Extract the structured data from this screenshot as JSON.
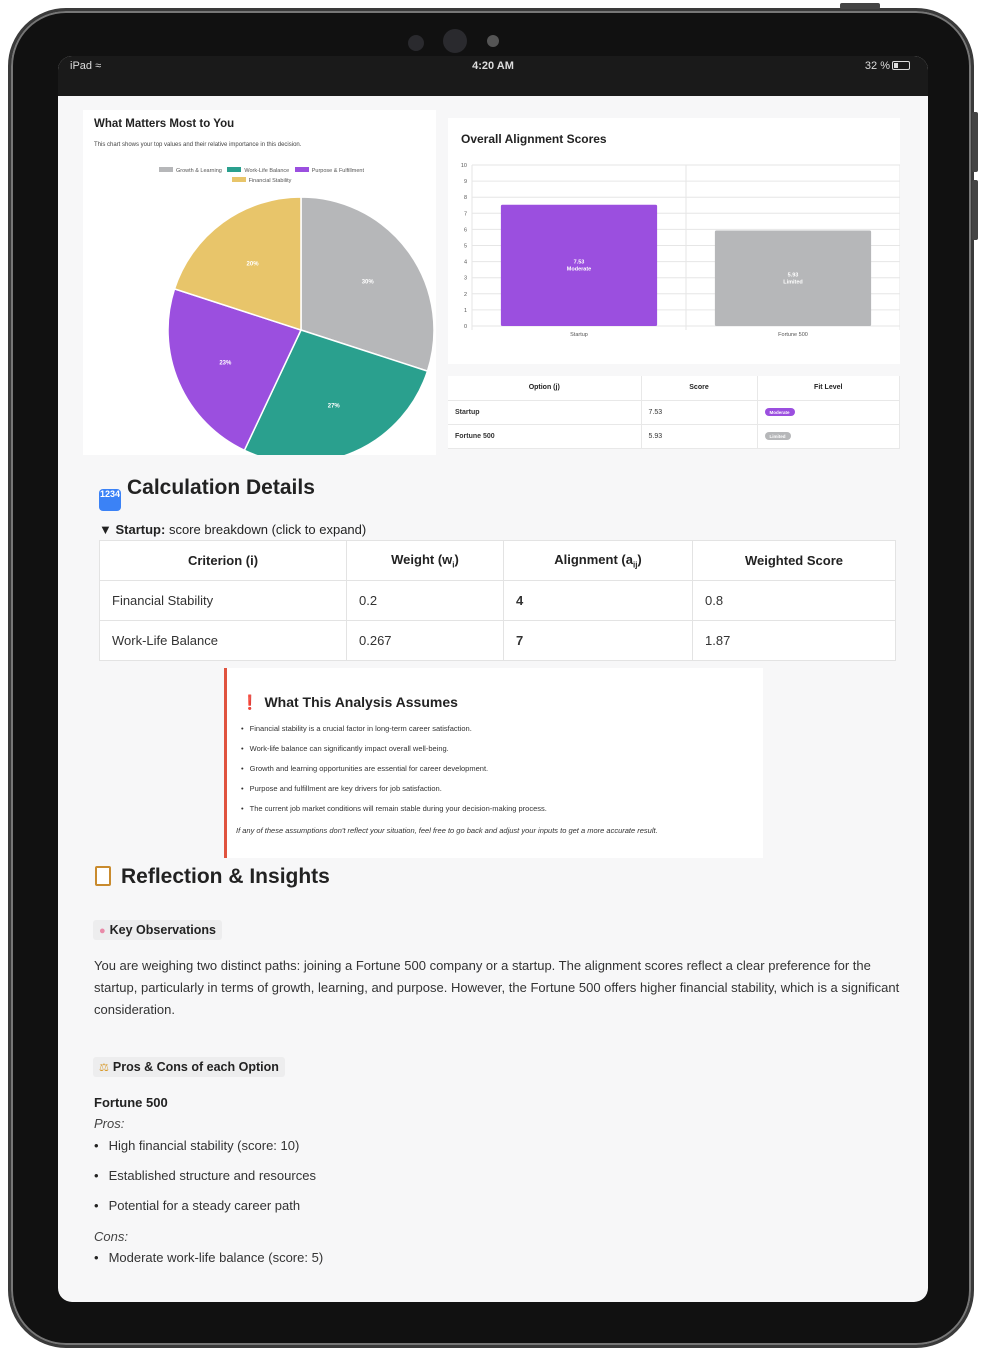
{
  "status": {
    "device": "iPad",
    "time": "4:20 AM",
    "battery": "32 %"
  },
  "pie_chart": {
    "title": "What Matters Most to You",
    "subtitle": "This chart shows your top values and their relative importance in this decision.",
    "legend": [
      {
        "label": "Growth & Learning",
        "color": "#b6b7b9"
      },
      {
        "label": "Work-Life Balance",
        "color": "#2aa08e"
      },
      {
        "label": "Purpose & Fulfillment",
        "color": "#9b4fdf"
      },
      {
        "label": "Financial Stability",
        "color": "#e8c56a"
      }
    ]
  },
  "bar_chart": {
    "title": "Overall Alignment Scores"
  },
  "chart_data": [
    {
      "type": "pie",
      "title": "What Matters Most to You",
      "categories": [
        "Growth & Learning",
        "Work-Life Balance",
        "Purpose & Fulfillment",
        "Financial Stability"
      ],
      "values": [
        30,
        27,
        23,
        20
      ],
      "labels": [
        "30%",
        "27%",
        "23%",
        "20%"
      ],
      "colors": [
        "#b6b7b9",
        "#2aa08e",
        "#9b4fdf",
        "#e8c56a"
      ],
      "legend_position": "top"
    },
    {
      "type": "bar",
      "title": "Overall Alignment Scores",
      "categories": [
        "Startup",
        "Fortune 500"
      ],
      "values": [
        7.53,
        5.93
      ],
      "data_labels": [
        [
          "7.53",
          "Moderate"
        ],
        [
          "5.93",
          "Limited"
        ]
      ],
      "colors": [
        "#9b4fdf",
        "#b6b7b9"
      ],
      "ylim": [
        0,
        10
      ],
      "yticks": [
        "0",
        "1",
        "2",
        "3",
        "4",
        "5",
        "6",
        "7",
        "8",
        "9",
        "10"
      ],
      "grid": true
    }
  ],
  "score_table": {
    "headers": [
      "Option (j)",
      "Score",
      "Fit Level"
    ],
    "rows": [
      {
        "option": "Startup",
        "score": "7.53",
        "fit": "Moderate",
        "fit_color": "#9b4fdf"
      },
      {
        "option": "Fortune 500",
        "score": "5.93",
        "fit": "Limited",
        "fit_color": "#b6b7b9"
      }
    ]
  },
  "calc": {
    "icon": "1234",
    "title": "Calculation Details",
    "summary_name": "Startup:",
    "summary_rest": " score breakdown (click to expand)",
    "headers": {
      "criterion": "Criterion (i)",
      "weight": "Weight (w",
      "weight_sub": "i",
      "alignment": "Alignment (a",
      "alignment_sub": "ij",
      "weighted": "Weighted Score"
    },
    "rows": [
      {
        "criterion": "Financial Stability",
        "weight": "0.2",
        "alignment": "4",
        "weighted": "0.8"
      },
      {
        "criterion": "Work-Life Balance",
        "weight": "0.267",
        "alignment": "7",
        "weighted": "1.87"
      }
    ]
  },
  "assumptions": {
    "icon": "❗",
    "title": "What This Analysis Assumes",
    "items": [
      "Financial stability is a crucial factor in long-term career satisfaction.",
      "Work-life balance can significantly impact overall well-being.",
      "Growth and learning opportunities are essential for career development.",
      "Purpose and fulfillment are key drivers for job satisfaction.",
      "The current job market conditions will remain stable during your decision-making process."
    ],
    "note": "If any of these assumptions don't reflect your situation, feel free to go back and adjust your inputs to get a more accurate result."
  },
  "reflection": {
    "title": "Reflection & Insights",
    "key_obs_tag": "Key Observations",
    "key_obs_text": "You are weighing two distinct paths: joining a Fortune 500 company or a startup. The alignment scores reflect a clear preference for the startup, particularly in terms of growth, learning, and purpose. However, the Fortune 500 offers higher financial stability, which is a significant consideration.",
    "pros_cons_tag": "Pros & Cons of each Option",
    "option_title": "Fortune 500",
    "pros_label": "Pros:",
    "pros": [
      "High financial stability (score: 10)",
      "Established structure and resources",
      "Potential for a steady career path"
    ],
    "cons_label": "Cons:",
    "cons": [
      "Moderate work-life balance (score: 5)"
    ]
  }
}
